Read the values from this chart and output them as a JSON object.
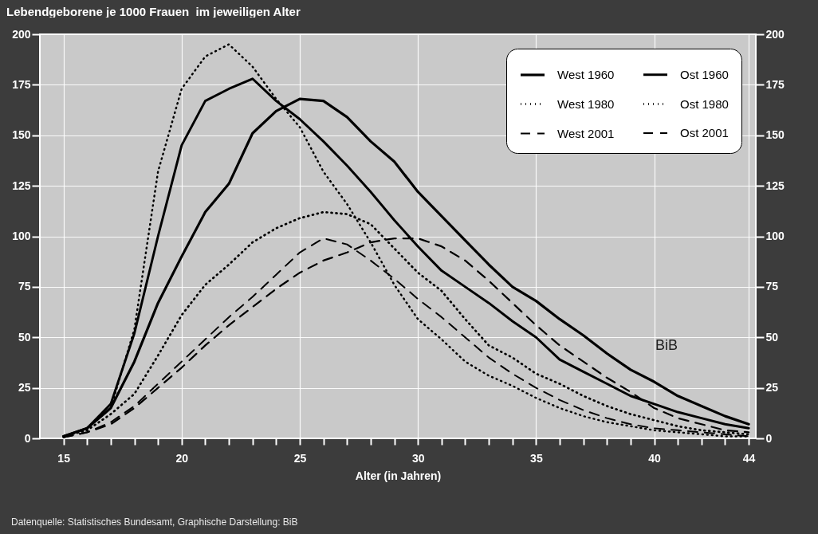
{
  "chart_data": {
    "type": "line",
    "title": "Lebendgeborene je 1000 Frauen  im jeweiligen Alter",
    "xlabel": "Alter (in Jahren)",
    "x": [
      15,
      16,
      17,
      18,
      19,
      20,
      21,
      22,
      23,
      24,
      25,
      26,
      27,
      28,
      29,
      30,
      31,
      32,
      33,
      34,
      35,
      36,
      37,
      38,
      39,
      40,
      41,
      42,
      43,
      44
    ],
    "series": [
      {
        "name": "West 1960",
        "color": "#000000",
        "line_style": "solid",
        "values": [
          1,
          5,
          15,
          38,
          67,
          90,
          112,
          126,
          151,
          162,
          168,
          167,
          159,
          147,
          137,
          122,
          110,
          98,
          86,
          75,
          68,
          59,
          51,
          42,
          34,
          28,
          21,
          16,
          11,
          7
        ]
      },
      {
        "name": "Ost 1960",
        "color": "#000000",
        "line_style": "solid",
        "values": [
          1,
          5,
          17,
          52,
          100,
          145,
          167,
          173,
          178,
          167,
          158,
          147,
          135,
          122,
          108,
          95,
          83,
          75,
          67,
          58,
          50,
          39,
          33,
          27,
          21,
          17,
          13,
          10,
          7,
          5
        ]
      },
      {
        "name": "West 1980",
        "color": "#000000",
        "line_style": "dotted",
        "values": [
          1,
          4,
          12,
          22,
          41,
          61,
          76,
          86,
          97,
          104,
          109,
          112,
          111,
          106,
          94,
          82,
          73,
          59,
          46,
          40,
          32,
          27,
          21,
          16,
          12,
          9,
          6,
          4,
          3,
          2
        ]
      },
      {
        "name": "Ost 1980",
        "color": "#000000",
        "line_style": "dotted",
        "values": [
          1,
          5,
          15,
          54,
          132,
          173,
          189,
          195,
          184,
          168,
          154,
          132,
          116,
          97,
          76,
          59,
          49,
          38,
          31,
          26,
          20,
          15,
          11,
          8,
          6,
          4,
          3,
          2,
          1,
          1
        ]
      },
      {
        "name": "West 2001",
        "color": "#000000",
        "line_style": "dashed",
        "values": [
          0.5,
          3,
          7,
          15,
          25,
          35,
          46,
          56,
          65,
          74,
          82,
          88,
          92,
          97,
          99,
          99,
          95,
          88,
          78,
          67,
          56,
          46,
          38,
          30,
          23,
          15,
          10,
          7,
          4,
          3
        ]
      },
      {
        "name": "Ost 2001",
        "color": "#000000",
        "line_style": "dashed",
        "values": [
          0.5,
          3,
          8,
          16,
          27,
          38,
          49,
          60,
          70,
          81,
          92,
          99,
          96,
          88,
          79,
          69,
          60,
          50,
          40,
          32,
          25,
          19,
          14,
          10,
          7,
          5,
          4,
          3,
          2,
          1
        ]
      }
    ],
    "xlim": [
      14,
      44.3
    ],
    "xticks": [
      15,
      {
        "value": 16,
        "label": null
      },
      {
        "value": 17,
        "label": null
      },
      {
        "value": 18,
        "label": null
      },
      {
        "value": 19,
        "label": null
      },
      20,
      {
        "value": 21,
        "label": null
      },
      {
        "value": 22,
        "label": null
      },
      {
        "value": 23,
        "label": null
      },
      {
        "value": 24,
        "label": null
      },
      25,
      {
        "value": 26,
        "label": null
      },
      {
        "value": 27,
        "label": null
      },
      {
        "value": 28,
        "label": null
      },
      {
        "value": 29,
        "label": null
      },
      30,
      {
        "value": 31,
        "label": null
      },
      {
        "value": 32,
        "label": null
      },
      {
        "value": 33,
        "label": null
      },
      {
        "value": 34,
        "label": null
      },
      35,
      {
        "value": 36,
        "label": null
      },
      {
        "value": 37,
        "label": null
      },
      {
        "value": 38,
        "label": null
      },
      {
        "value": 39,
        "label": null
      },
      40,
      {
        "value": 41,
        "label": null
      },
      {
        "value": 42,
        "label": null
      },
      {
        "value": 43,
        "label": null
      },
      44
    ],
    "ylim": [
      0,
      200
    ],
    "yticks": [
      0,
      25,
      50,
      75,
      100,
      125,
      150,
      175,
      200
    ],
    "y2lim": [
      0,
      200
    ],
    "y2ticks": [
      0,
      25,
      50,
      75,
      100,
      125,
      150,
      175,
      200
    ],
    "grid": true,
    "legend": "top right",
    "marker": "none",
    "annotations": [
      "Datenquelle: Statistisches Bundesamt, Graphische Darstellung: BiB",
      "BiB"
    ]
  }
}
